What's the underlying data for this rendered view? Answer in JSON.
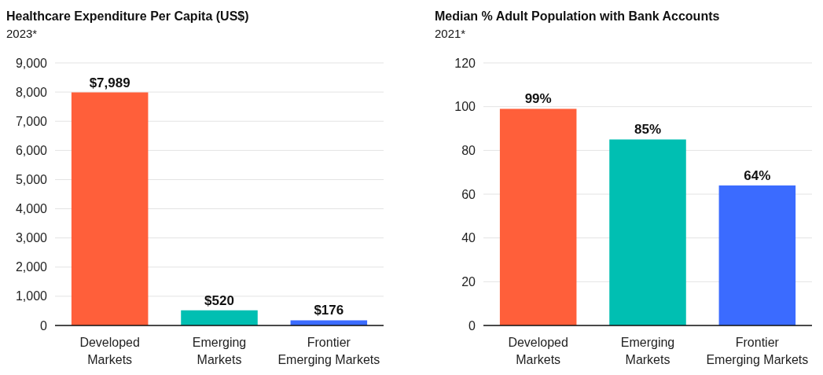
{
  "chart_data": [
    {
      "type": "bar",
      "title": "Healthcare Expenditure Per Capita (US$)",
      "subtitle": "2023*",
      "categories": [
        "Developed\nMarkets",
        "Emerging\nMarkets",
        "Frontier\nEmerging Markets"
      ],
      "values": [
        7989,
        520,
        176
      ],
      "colors": [
        "#ff5f3a",
        "#00bfb2",
        "#3b6bff"
      ],
      "value_labels": [
        "$7,989",
        "$520",
        "$176"
      ],
      "ylim": [
        0,
        9000
      ],
      "yticks": [
        {
          "value": 0,
          "label": "0"
        },
        {
          "value": 1000,
          "label": "1,000"
        },
        {
          "value": 2000,
          "label": "2,000"
        },
        {
          "value": 3000,
          "label": "3,000"
        },
        {
          "value": 4000,
          "label": "4,000"
        },
        {
          "value": 5000,
          "label": "5,000"
        },
        {
          "value": 6000,
          "label": "6,000"
        },
        {
          "value": 7000,
          "label": "7,000"
        },
        {
          "value": 8000,
          "label": "8,000"
        },
        {
          "value": 9000,
          "label": "9,000"
        }
      ],
      "grid": "y"
    },
    {
      "type": "bar",
      "title": "Median % Adult Population with Bank Accounts",
      "subtitle": "2021*",
      "categories": [
        "Developed\nMarkets",
        "Emerging\nMarkets",
        "Frontier\nEmerging Markets"
      ],
      "values": [
        99,
        85,
        64
      ],
      "colors": [
        "#ff5f3a",
        "#00bfb2",
        "#3b6bff"
      ],
      "value_labels": [
        "99%",
        "85%",
        "64%"
      ],
      "ylim": [
        0,
        120
      ],
      "yticks": [
        0,
        20,
        40,
        60,
        80,
        100,
        120
      ],
      "grid": "y"
    }
  ]
}
